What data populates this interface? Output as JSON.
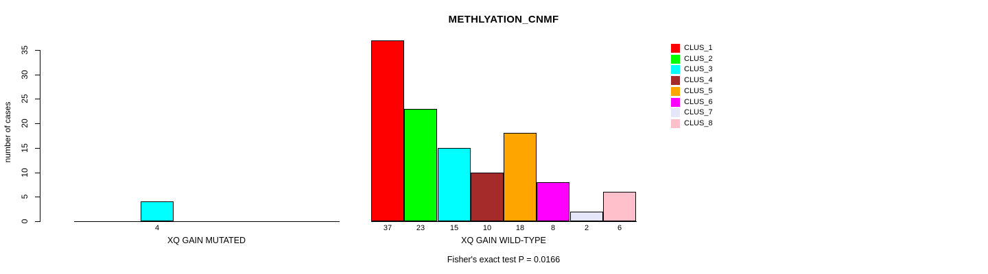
{
  "figure": {
    "title": "METHLYATION_CNMF",
    "annotation": "Fisher's exact test P = 0.0166"
  },
  "chart_data": {
    "type": "bar",
    "title": "METHLYATION_CNMF",
    "xlabel": "",
    "ylabel": "number of cases",
    "ylim": [
      0,
      35
    ],
    "yticks": [
      0,
      5,
      10,
      15,
      20,
      25,
      30,
      35
    ],
    "grid": false,
    "legend_position": "top-right",
    "clusters": [
      {
        "name": "CLUS_1",
        "color": "#ff0000"
      },
      {
        "name": "CLUS_2",
        "color": "#00ff00"
      },
      {
        "name": "CLUS_3",
        "color": "#00ffff"
      },
      {
        "name": "CLUS_4",
        "color": "#a52a2a"
      },
      {
        "name": "CLUS_5",
        "color": "#ffa500"
      },
      {
        "name": "CLUS_6",
        "color": "#ff00ff"
      },
      {
        "name": "CLUS_7",
        "color": "#e6e6fa"
      },
      {
        "name": "CLUS_8",
        "color": "#ffc0cb"
      }
    ],
    "groups": [
      {
        "label": "XQ GAIN MUTATED",
        "values": [
          0,
          0,
          4,
          0,
          0,
          0,
          0,
          0
        ]
      },
      {
        "label": "XQ GAIN WILD-TYPE",
        "values": [
          37,
          23,
          15,
          10,
          18,
          8,
          2,
          6
        ]
      }
    ],
    "annotation": "Fisher's exact test P = 0.0166"
  }
}
